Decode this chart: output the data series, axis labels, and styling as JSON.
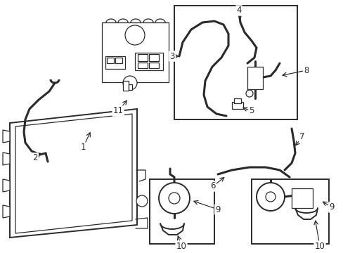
{
  "bg_color": "#ffffff",
  "line_color": "#2a2a2a",
  "figsize": [
    4.89,
    3.6
  ],
  "dpi": 100,
  "xlim": [
    0,
    489
  ],
  "ylim": [
    0,
    360
  ]
}
